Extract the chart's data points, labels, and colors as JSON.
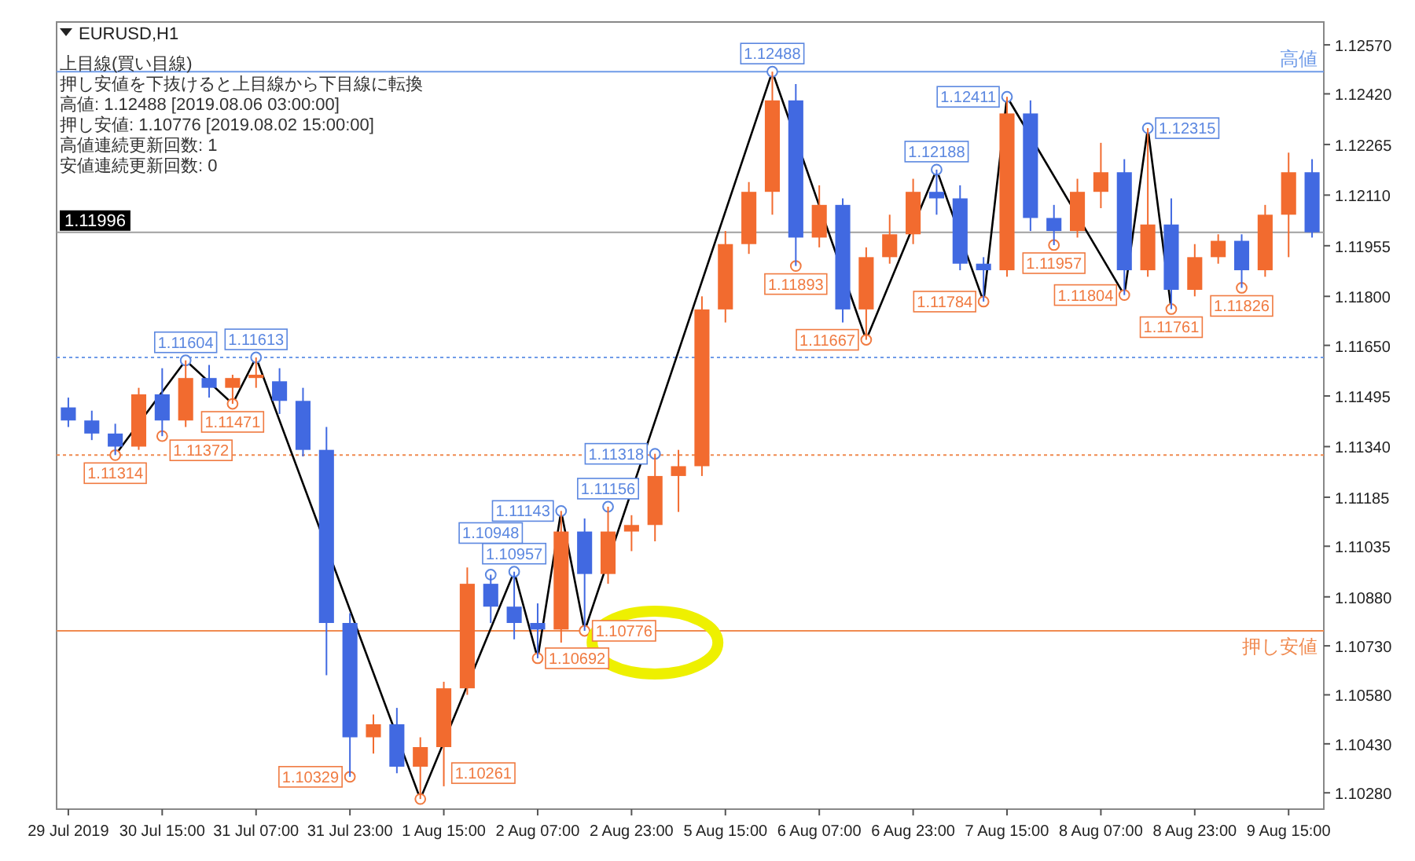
{
  "chart_data": {
    "type": "candlestick",
    "title": "EURUSD,H1",
    "annotations": [
      "上目線(買い目線)",
      "押し安値を下抜けると上目線から下目線に転換",
      "高値: 1.12488 [2019.08.06 03:00:00]",
      "押し安値: 1.10776 [2019.08.02 15:00:00]",
      "高値連続更新回数: 1",
      "安値連続更新回数: 0"
    ],
    "categories": [
      "29 Jul 2019",
      null,
      null,
      null,
      "30 Jul 15:00",
      null,
      null,
      null,
      "31 Jul 07:00",
      null,
      null,
      null,
      "31 Jul 23:00",
      null,
      null,
      null,
      "1 Aug 15:00",
      null,
      null,
      null,
      "2 Aug 07:00",
      null,
      null,
      null,
      "2 Aug 23:00",
      null,
      null,
      null,
      "5 Aug 15:00",
      null,
      null,
      null,
      "6 Aug 07:00",
      null,
      null,
      null,
      "6 Aug 23:00",
      null,
      null,
      null,
      "7 Aug 15:00",
      null,
      null,
      null,
      "8 Aug 07:00",
      null,
      null,
      null,
      "8 Aug 23:00",
      null,
      null,
      null,
      "9 Aug 15:00",
      null
    ],
    "ohlc": [
      [
        1.1146,
        1.1149,
        1.114,
        1.1142
      ],
      [
        1.1142,
        1.1145,
        1.1136,
        1.1138
      ],
      [
        1.1138,
        1.1141,
        1.11314,
        1.1134
      ],
      [
        1.1134,
        1.1152,
        1.1133,
        1.115
      ],
      [
        1.115,
        1.1158,
        1.11372,
        1.1142
      ],
      [
        1.1142,
        1.11604,
        1.114,
        1.1155
      ],
      [
        1.1155,
        1.1159,
        1.1149,
        1.1152
      ],
      [
        1.1152,
        1.1156,
        1.11471,
        1.1155
      ],
      [
        1.1155,
        1.11613,
        1.1152,
        1.1156
      ],
      [
        1.1154,
        1.1158,
        1.1144,
        1.1148
      ],
      [
        1.1148,
        1.1152,
        1.1131,
        1.1133
      ],
      [
        1.1133,
        1.114,
        1.1064,
        1.108
      ],
      [
        1.108,
        1.1083,
        1.10329,
        1.1045
      ],
      [
        1.1045,
        1.1052,
        1.104,
        1.1049
      ],
      [
        1.1049,
        1.1054,
        1.1034,
        1.1036
      ],
      [
        1.1036,
        1.1045,
        1.10261,
        1.1042
      ],
      [
        1.1042,
        1.1062,
        1.103,
        1.106
      ],
      [
        1.106,
        1.1097,
        1.1058,
        1.1092
      ],
      [
        1.1092,
        1.10948,
        1.108,
        1.1085
      ],
      [
        1.1085,
        1.10957,
        1.1075,
        1.108
      ],
      [
        1.108,
        1.1086,
        1.10692,
        1.1078
      ],
      [
        1.1078,
        1.11143,
        1.1074,
        1.1108
      ],
      [
        1.1108,
        1.1112,
        1.10776,
        1.1095
      ],
      [
        1.1095,
        1.11156,
        1.1092,
        1.1108
      ],
      [
        1.1108,
        1.1113,
        1.1102,
        1.111
      ],
      [
        1.111,
        1.11318,
        1.1105,
        1.1125
      ],
      [
        1.1125,
        1.1133,
        1.1114,
        1.1128
      ],
      [
        1.1128,
        1.118,
        1.1125,
        1.1176
      ],
      [
        1.1176,
        1.12,
        1.1172,
        1.1196
      ],
      [
        1.1196,
        1.1215,
        1.1193,
        1.1212
      ],
      [
        1.1212,
        1.12488,
        1.1205,
        1.124
      ],
      [
        1.124,
        1.1245,
        1.11893,
        1.1198
      ],
      [
        1.1198,
        1.1214,
        1.1195,
        1.1208
      ],
      [
        1.1208,
        1.121,
        1.1172,
        1.1176
      ],
      [
        1.1176,
        1.1195,
        1.11667,
        1.1192
      ],
      [
        1.1192,
        1.1205,
        1.119,
        1.1199
      ],
      [
        1.1199,
        1.1216,
        1.1196,
        1.1212
      ],
      [
        1.1212,
        1.12188,
        1.1205,
        1.121
      ],
      [
        1.121,
        1.1214,
        1.1188,
        1.119
      ],
      [
        1.119,
        1.1192,
        1.11784,
        1.1188
      ],
      [
        1.1188,
        1.12411,
        1.1186,
        1.1236
      ],
      [
        1.1236,
        1.124,
        1.12,
        1.1204
      ],
      [
        1.1204,
        1.1208,
        1.11957,
        1.12
      ],
      [
        1.12,
        1.1216,
        1.1198,
        1.1212
      ],
      [
        1.1212,
        1.1227,
        1.1207,
        1.1218
      ],
      [
        1.1218,
        1.1222,
        1.11804,
        1.1188
      ],
      [
        1.1188,
        1.12315,
        1.1186,
        1.1202
      ],
      [
        1.1202,
        1.121,
        1.11761,
        1.1182
      ],
      [
        1.1182,
        1.1196,
        1.118,
        1.1192
      ],
      [
        1.1192,
        1.1199,
        1.119,
        1.1197
      ],
      [
        1.1197,
        1.1199,
        1.11826,
        1.1188
      ],
      [
        1.1188,
        1.1208,
        1.1186,
        1.1205
      ],
      [
        1.1205,
        1.1224,
        1.1192,
        1.1218
      ],
      [
        1.1218,
        1.1222,
        1.1198,
        1.11996
      ]
    ],
    "colors": [
      "#4169e1",
      "#4169e1",
      "#4169e1",
      "#f26b2f",
      "#4169e1",
      "#f26b2f",
      "#4169e1",
      "#f26b2f",
      "#f26b2f",
      "#4169e1",
      "#4169e1",
      "#4169e1",
      "#4169e1",
      "#f26b2f",
      "#4169e1",
      "#f26b2f",
      "#f26b2f",
      "#f26b2f",
      "#4169e1",
      "#4169e1",
      "#4169e1",
      "#f26b2f",
      "#4169e1",
      "#f26b2f",
      "#f26b2f",
      "#f26b2f",
      "#f26b2f",
      "#f26b2f",
      "#f26b2f",
      "#f26b2f",
      "#f26b2f",
      "#4169e1",
      "#f26b2f",
      "#4169e1",
      "#f26b2f",
      "#f26b2f",
      "#f26b2f",
      "#4169e1",
      "#4169e1",
      "#4169e1",
      "#f26b2f",
      "#4169e1",
      "#4169e1",
      "#f26b2f",
      "#f26b2f",
      "#4169e1",
      "#f26b2f",
      "#4169e1",
      "#f26b2f",
      "#f26b2f",
      "#4169e1",
      "#f26b2f",
      "#f26b2f",
      "#4169e1"
    ],
    "series": [
      {
        "type": "line",
        "color": "#000000",
        "marker": "none",
        "values": [
          null,
          null,
          1.11314,
          null,
          null,
          1.11604,
          null,
          1.11471,
          1.11613,
          null,
          null,
          null,
          null,
          null,
          null,
          1.10261,
          null,
          null,
          null,
          1.10957,
          1.10692,
          1.11143,
          1.10776,
          null,
          null,
          null,
          null,
          null,
          null,
          null,
          1.12488,
          null,
          null,
          null,
          1.11667,
          null,
          null,
          1.12188,
          null,
          1.11784,
          1.12411,
          null,
          null,
          null,
          null,
          1.11804,
          1.12315,
          1.11761,
          null,
          null,
          null,
          null,
          null,
          null
        ]
      },
      {
        "type": "scatter",
        "marker": "circle",
        "values": [
          null,
          null,
          1.11314,
          null,
          1.11372,
          1.11604,
          null,
          1.11471,
          1.11613,
          null,
          null,
          null,
          1.10329,
          null,
          null,
          1.10261,
          null,
          null,
          1.10948,
          1.10957,
          1.10692,
          1.11143,
          1.10776,
          1.11156,
          null,
          1.11318,
          null,
          null,
          null,
          null,
          1.12488,
          1.11893,
          null,
          null,
          1.11667,
          null,
          null,
          1.12188,
          null,
          1.11784,
          1.12411,
          null,
          1.11957,
          null,
          null,
          1.11804,
          1.12315,
          1.11761,
          null,
          null,
          1.11826,
          null,
          null,
          null
        ],
        "value_labels": [
          null,
          null,
          "1.11314",
          null,
          "1.11372",
          "1.11604",
          null,
          "1.11471",
          "1.11613",
          null,
          null,
          null,
          "1.10329",
          null,
          null,
          "1.10261",
          null,
          null,
          "1.10948",
          "1.10957",
          "1.10692",
          "1.11143",
          "1.10776",
          "1.11156",
          null,
          "1.11318",
          null,
          null,
          null,
          null,
          "1.12488",
          "1.11893",
          null,
          null,
          "1.11667",
          null,
          null,
          "1.12188",
          null,
          "1.11784",
          "1.12411",
          null,
          "1.11957",
          null,
          null,
          "1.11804",
          "1.12315",
          "1.11761",
          null,
          null,
          "1.11826",
          null,
          null,
          null
        ],
        "colors": [
          null,
          null,
          "#f07a40",
          null,
          "#f07a40",
          "#5b87e0",
          null,
          "#f07a40",
          "#5b87e0",
          null,
          null,
          null,
          "#f07a40",
          null,
          null,
          "#f07a40",
          null,
          null,
          "#5b87e0",
          "#5b87e0",
          "#f07a40",
          "#5b87e0",
          "#f07a40",
          "#5b87e0",
          null,
          "#5b87e0",
          null,
          null,
          null,
          null,
          "#5b87e0",
          "#f07a40",
          null,
          null,
          "#f07a40",
          null,
          null,
          "#5b87e0",
          null,
          "#f07a40",
          "#5b87e0",
          null,
          "#f07a40",
          null,
          null,
          "#f07a40",
          "#5b87e0",
          "#f07a40",
          null,
          null,
          "#f07a40",
          null,
          null,
          null
        ]
      }
    ],
    "ref_lines": [
      {
        "axis": "y",
        "value": 1.12488,
        "label": "高値",
        "color": "#6f9be8"
      },
      {
        "axis": "y",
        "value": 1.10776,
        "label": "押し安値",
        "color": "#f08a50"
      },
      {
        "axis": "y",
        "value": 1.11996,
        "label": "1.11996",
        "color": "#a0a0a0"
      },
      {
        "axis": "y",
        "value": 1.11613,
        "color": "#6f9be8",
        "line_style": "dotted"
      },
      {
        "axis": "y",
        "value": 1.11314,
        "color": "#f08a50",
        "line_style": "dotted"
      }
    ],
    "ylim": [
      1.1023,
      1.1264
    ],
    "yticks": [
      {
        "value": 1.1028,
        "label": "1.10280"
      },
      {
        "value": 1.1043,
        "label": "1.10430"
      },
      {
        "value": 1.1058,
        "label": "1.10580"
      },
      {
        "value": 1.1073,
        "label": "1.10730"
      },
      {
        "value": 1.1088,
        "label": "1.10880"
      },
      {
        "value": 1.11035,
        "label": "1.11035"
      },
      {
        "value": 1.11185,
        "label": "1.11185"
      },
      {
        "value": 1.1134,
        "label": "1.11340"
      },
      {
        "value": 1.11495,
        "label": "1.11495"
      },
      {
        "value": 1.1165,
        "label": "1.11650"
      },
      {
        "value": 1.118,
        "label": "1.11800"
      },
      {
        "value": 1.11955,
        "label": "1.11955"
      },
      {
        "value": 1.1211,
        "label": "1.12110"
      },
      {
        "value": 1.12265,
        "label": "1.12265"
      },
      {
        "value": 1.1242,
        "label": "1.12420"
      },
      {
        "value": 1.1257,
        "label": "1.12570"
      }
    ]
  }
}
